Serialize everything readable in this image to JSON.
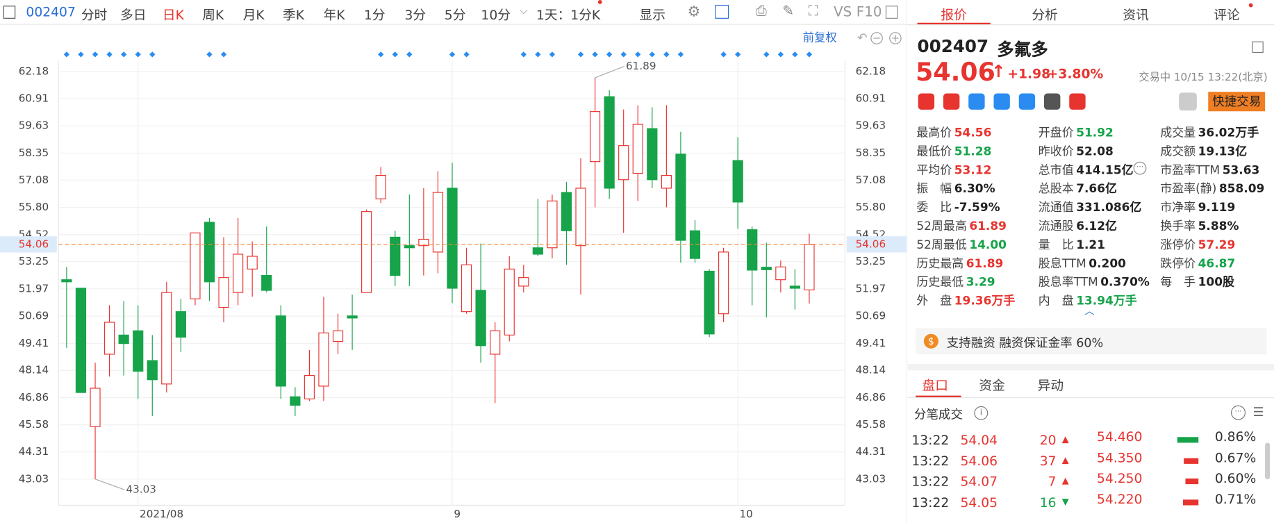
{
  "toolbar": {
    "code": "002407",
    "periods": [
      "分时",
      "多日",
      "日K",
      "周K",
      "月K",
      "季K",
      "年K",
      "1分",
      "3分",
      "5分",
      "10分"
    ],
    "active": "日K",
    "interval": "1天：1分K",
    "display": "显示",
    "vs": "VS",
    "f10": "F10",
    "adjust": "前复权"
  },
  "chart_data": {
    "type": "candlestick",
    "categories": [
      null,
      null,
      null,
      null,
      null,
      "2021/08",
      null,
      null,
      null,
      null,
      null,
      null,
      null,
      null,
      null,
      null,
      null,
      null,
      null,
      null,
      null,
      null,
      null,
      null,
      null,
      null,
      null,
      "9",
      null,
      null,
      null,
      null,
      null,
      null,
      null,
      null,
      null,
      null,
      null,
      null,
      null,
      null,
      null,
      null,
      null,
      null,
      null,
      "10",
      null,
      null,
      null,
      null,
      null
    ],
    "open": [
      52.4,
      52.0,
      45.5,
      48.9,
      49.8,
      50.0,
      48.6,
      47.5,
      50.9,
      51.5,
      55.1,
      51.1,
      51.8,
      52.9,
      52.6,
      50.7,
      46.9,
      46.8,
      47.4,
      49.5,
      50.7,
      51.8,
      56.2,
      54.4,
      54.0,
      54.0,
      53.7,
      56.7,
      50.9,
      51.9,
      48.9,
      49.8,
      52.1,
      53.9,
      53.9,
      56.5,
      54.0,
      57.95,
      61.0,
      57.1,
      57.4,
      59.5,
      56.7,
      58.3,
      54.7,
      52.8,
      50.8,
      58.0,
      54.75,
      52.99,
      52.4,
      52.1,
      51.92
    ],
    "high": [
      53.0,
      52.0,
      48.5,
      51.2,
      51.4,
      51.2,
      49.8,
      52.3,
      51.5,
      54.6,
      55.3,
      54.4,
      55.3,
      54.2,
      54.9,
      51.2,
      47.35,
      49.1,
      51.6,
      50.8,
      51.7,
      55.7,
      57.7,
      54.7,
      56.4,
      56.7,
      57.5,
      57.9,
      53.9,
      54.1,
      50.4,
      53.5,
      53.1,
      56.2,
      56.4,
      57.0,
      58.1,
      61.89,
      61.3,
      60.4,
      60.6,
      60.5,
      60.6,
      59.35,
      55.2,
      52.9,
      53.9,
      59.1,
      54.9,
      54.14,
      53.3,
      52.9,
      54.56
    ],
    "low": [
      49.2,
      47.1,
      43.03,
      47.85,
      47.9,
      46.8,
      46.0,
      47.1,
      49.0,
      51.2,
      51.4,
      50.4,
      51.2,
      51.6,
      51.8,
      46.8,
      46.0,
      46.7,
      46.7,
      48.9,
      49.1,
      51.8,
      56.0,
      52.1,
      52.1,
      52.6,
      52.7,
      51.3,
      50.8,
      48.5,
      46.6,
      49.5,
      51.8,
      53.5,
      53.4,
      53.1,
      51.7,
      55.8,
      56.2,
      54.6,
      56.1,
      56.7,
      55.8,
      53.2,
      53.2,
      49.7,
      50.4,
      54.8,
      51.2,
      50.63,
      51.8,
      51.0,
      51.28
    ],
    "close": [
      52.3,
      47.1,
      47.3,
      50.4,
      49.4,
      48.1,
      47.7,
      51.8,
      49.7,
      54.6,
      52.3,
      52.5,
      53.6,
      53.5,
      51.9,
      47.4,
      46.5,
      47.9,
      49.9,
      50.0,
      50.6,
      55.6,
      57.3,
      52.6,
      53.9,
      54.3,
      56.5,
      52.0,
      53.1,
      49.3,
      50.0,
      52.9,
      52.5,
      53.6,
      56.1,
      54.7,
      56.7,
      60.3,
      56.7,
      58.7,
      59.7,
      57.1,
      57.3,
      54.25,
      53.4,
      49.85,
      53.7,
      56.05,
      52.85,
      52.87,
      53.0,
      52.0,
      54.06
    ],
    "up_color": "#e7342f",
    "down_color": "#16a34a",
    "ylim": [
      41.8,
      62.68
    ],
    "yticks": [
      62.18,
      60.91,
      59.63,
      58.35,
      57.08,
      {
        "value": 55.8,
        "label": "55.80"
      },
      54.52,
      53.25,
      51.97,
      50.69,
      49.41,
      48.14,
      46.86,
      45.58,
      44.31,
      43.03
    ],
    "grid": true,
    "last_price": 54.06,
    "annotations": [
      {
        "value": 61.89,
        "label": "61.89"
      },
      {
        "value": 43.03,
        "label": "43.03"
      }
    ]
  },
  "panel": {
    "tabs": [
      "报价",
      "分析",
      "资讯",
      "评论"
    ],
    "active_tab": "报价",
    "code": "002407",
    "name": "多氟多",
    "price": "54.06",
    "change": "+1.98",
    "change_pct": "+3.80%",
    "status": "交易中 10/15 13:22(北京)",
    "trade_button": "快捷交易",
    "quotes": [
      [
        {
          "label": "最高价",
          "value": "54.56",
          "color": "#e7342f"
        },
        {
          "label": "开盘价",
          "value": "51.92",
          "color": "#16a34a"
        },
        {
          "label": "成交量",
          "value": "36.02万手",
          "color": "#222"
        }
      ],
      [
        {
          "label": "最低价",
          "value": "51.28",
          "color": "#16a34a"
        },
        {
          "label": "昨收价",
          "value": "52.08",
          "color": "#222"
        },
        {
          "label": "成交额",
          "value": "19.13亿",
          "color": "#222"
        }
      ],
      [
        {
          "label": "平均价",
          "value": "53.12",
          "color": "#e7342f"
        },
        {
          "label": "总市值",
          "value": "414.15亿",
          "color": "#222"
        },
        {
          "label": "市盈率TTM",
          "value": "53.63",
          "color": "#222"
        }
      ],
      [
        {
          "label": "振　幅",
          "value": "6.30%",
          "color": "#222"
        },
        {
          "label": "总股本",
          "value": "7.66亿",
          "color": "#222"
        },
        {
          "label": "市盈率(静)",
          "value": "858.09",
          "color": "#222"
        }
      ],
      [
        {
          "label": "委　比",
          "value": "-7.59%",
          "color": "#222"
        },
        {
          "label": "流通值",
          "value": "331.086亿",
          "color": "#222"
        },
        {
          "label": "市净率",
          "value": "9.119",
          "color": "#222"
        }
      ],
      [
        {
          "label": "52周最高",
          "value": "61.89",
          "color": "#e7342f"
        },
        {
          "label": "流通股",
          "value": "6.12亿",
          "color": "#222"
        },
        {
          "label": "换手率",
          "value": "5.88%",
          "color": "#222"
        }
      ],
      [
        {
          "label": "52周最低",
          "value": "14.00",
          "color": "#16a34a"
        },
        {
          "label": "量　比",
          "value": "1.21",
          "color": "#222"
        },
        {
          "label": "涨停价",
          "value": "57.29",
          "color": "#e7342f"
        }
      ],
      [
        {
          "label": "历史最高",
          "value": "61.89",
          "color": "#e7342f"
        },
        {
          "label": "股息TTM",
          "value": "0.200",
          "color": "#222"
        },
        {
          "label": "跌停价",
          "value": "46.87",
          "color": "#16a34a"
        }
      ],
      [
        {
          "label": "历史最低",
          "value": "3.29",
          "color": "#16a34a"
        },
        {
          "label": "股息率TTM",
          "value": "0.370%",
          "color": "#222"
        },
        {
          "label": "每　手",
          "value": "100股",
          "color": "#222"
        }
      ],
      [
        {
          "label": "外　盘",
          "value": "19.36万手",
          "color": "#e7342f"
        },
        {
          "label": "内　盘",
          "value": "13.94万手",
          "color": "#16a34a"
        }
      ]
    ],
    "margin": "支持融资 融资保证金率 60%",
    "subtabs": [
      "盘口",
      "资金",
      "异动"
    ],
    "active_subtab": "盘口",
    "ticks_title": "分笔成交",
    "trades": [
      {
        "time": "13:22",
        "price": "54.04",
        "volume": "20",
        "direction": "up",
        "price2": "54.460",
        "pct": "0.86%"
      },
      {
        "time": "13:22",
        "price": "54.06",
        "volume": "37",
        "direction": "up",
        "price2": "54.350",
        "pct": "0.67%"
      },
      {
        "time": "13:22",
        "price": "54.07",
        "volume": "7",
        "direction": "up",
        "price2": "54.250",
        "pct": "0.60%"
      },
      {
        "time": "13:22",
        "price": "54.05",
        "volume": "16",
        "direction": "down",
        "price2": "54.220",
        "pct": "0.71%"
      }
    ]
  }
}
